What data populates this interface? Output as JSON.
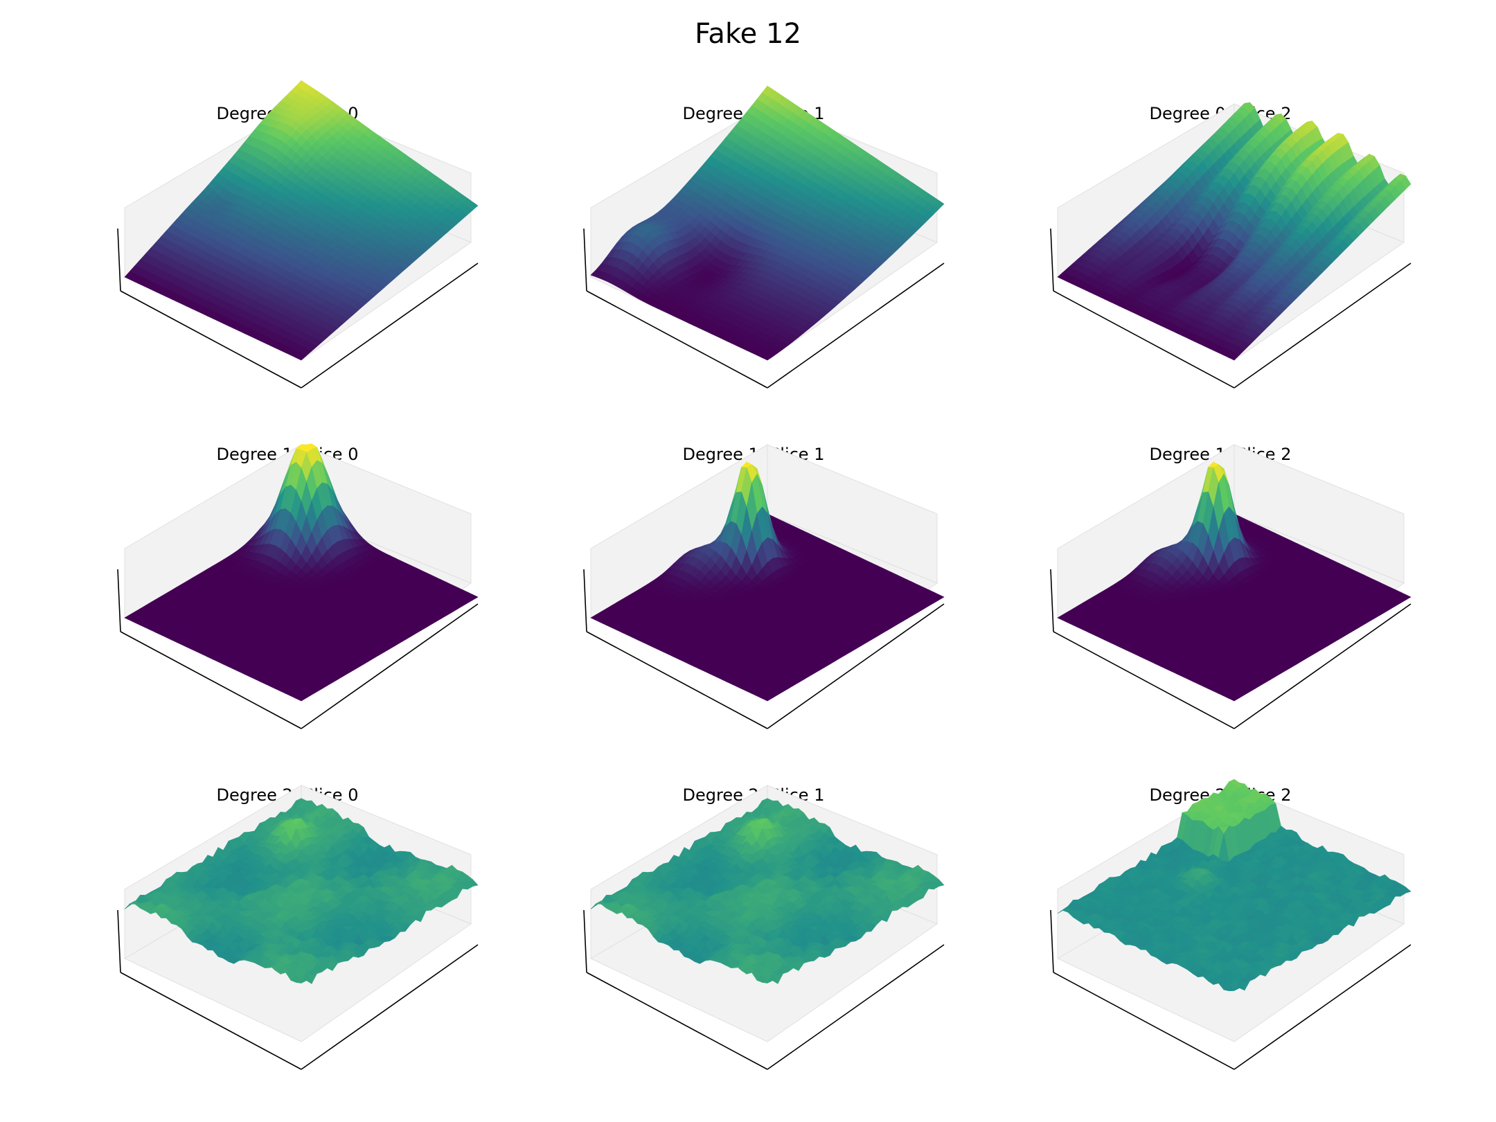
{
  "figure": {
    "title": "Fake 12"
  },
  "colormap": [
    "#440154",
    "#3b528b",
    "#21918c",
    "#5ec962",
    "#fde725"
  ],
  "chart_data": [
    {
      "type": "surface3d",
      "title": "Degree 0, Slice 0",
      "surface": "tilted-ramp-bump"
    },
    {
      "type": "surface3d",
      "title": "Degree 0, Slice 1",
      "surface": "ramp-with-valley"
    },
    {
      "type": "surface3d",
      "title": "Degree 0, Slice 2",
      "surface": "terraced-ridges"
    },
    {
      "type": "surface3d",
      "title": "Degree 1, Slice 0",
      "surface": "single-broad-peak"
    },
    {
      "type": "surface3d",
      "title": "Degree 1, Slice 1",
      "surface": "single-narrow-peak"
    },
    {
      "type": "surface3d",
      "title": "Degree 1, Slice 2",
      "surface": "single-narrow-peak"
    },
    {
      "type": "surface3d",
      "title": "Degree 2, Slice 0",
      "surface": "noisy-plateau"
    },
    {
      "type": "surface3d",
      "title": "Degree 2, Slice 1",
      "surface": "noisy-plateau"
    },
    {
      "type": "surface3d",
      "title": "Degree 2, Slice 2",
      "surface": "noisy-plateau-wall"
    }
  ]
}
